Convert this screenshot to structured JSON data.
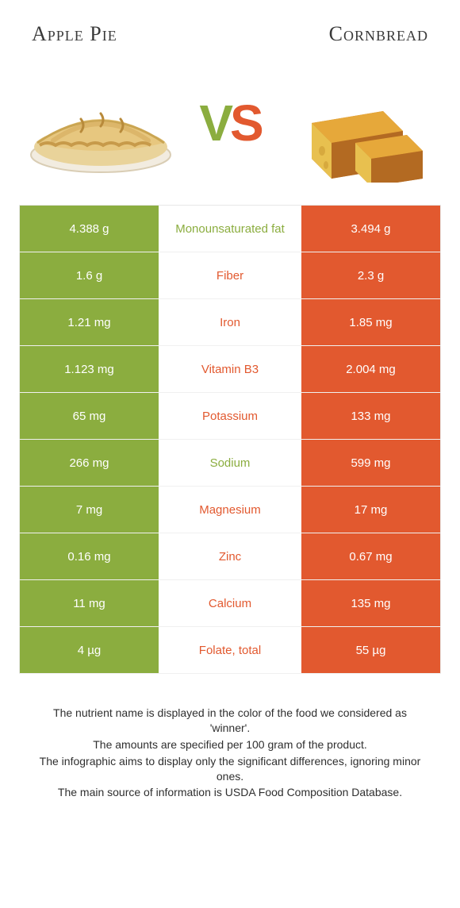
{
  "header": {
    "left_title": "Apple Pie",
    "right_title": "Cornbread",
    "vs_v": "V",
    "vs_s": "S"
  },
  "palette": {
    "green": "#8bad3f",
    "orange": "#e2592f",
    "text": "#333333",
    "row_border": "#e7e7e7"
  },
  "table": {
    "rows": [
      {
        "left": "4.388 g",
        "label": "Monounsaturated fat",
        "right": "3.494 g",
        "winner": "left"
      },
      {
        "left": "1.6 g",
        "label": "Fiber",
        "right": "2.3 g",
        "winner": "right"
      },
      {
        "left": "1.21 mg",
        "label": "Iron",
        "right": "1.85 mg",
        "winner": "right"
      },
      {
        "left": "1.123 mg",
        "label": "Vitamin B3",
        "right": "2.004 mg",
        "winner": "right"
      },
      {
        "left": "65 mg",
        "label": "Potassium",
        "right": "133 mg",
        "winner": "right"
      },
      {
        "left": "266 mg",
        "label": "Sodium",
        "right": "599 mg",
        "winner": "left"
      },
      {
        "left": "7 mg",
        "label": "Magnesium",
        "right": "17 mg",
        "winner": "right"
      },
      {
        "left": "0.16 mg",
        "label": "Zinc",
        "right": "0.67 mg",
        "winner": "right"
      },
      {
        "left": "11 mg",
        "label": "Calcium",
        "right": "135 mg",
        "winner": "right"
      },
      {
        "left": "4 µg",
        "label": "Folate, total",
        "right": "55 µg",
        "winner": "right"
      }
    ]
  },
  "notes": {
    "line1": "The nutrient name is displayed in the color of the food we considered as 'winner'.",
    "line2": "The amounts are specified per 100 gram of the product.",
    "line3": "The infographic aims to display only the significant differences, ignoring minor ones.",
    "line4": "The main source of information is USDA Food Composition Database."
  }
}
